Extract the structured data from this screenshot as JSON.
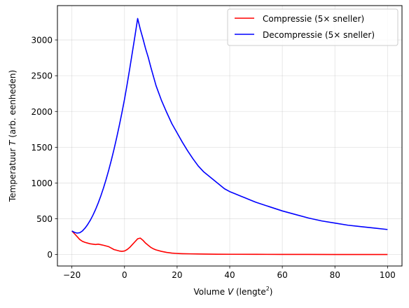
{
  "chart_data": {
    "type": "line",
    "xlabel_main": "Volume ",
    "xlabel_var": "V",
    "xlabel_unit": " (lengte",
    "xlabel_sup": "2",
    "xlabel_close": ")",
    "ylabel_main": "Temperatuur ",
    "ylabel_var": "T",
    "ylabel_unit": " (arb. eenheden)",
    "xlim": [
      -25.5,
      105.5
    ],
    "ylim": [
      -160,
      3480
    ],
    "xticks": [
      -20,
      0,
      20,
      40,
      60,
      80,
      100
    ],
    "xtick_labels": [
      "−20",
      "0",
      "20",
      "40",
      "60",
      "80",
      "100"
    ],
    "yticks": [
      0,
      500,
      1000,
      1500,
      2000,
      2500,
      3000
    ],
    "ytick_labels": [
      "0",
      "500",
      "1000",
      "1500",
      "2000",
      "2500",
      "3000"
    ],
    "grid": true,
    "legend_position": "top-right",
    "series": [
      {
        "name": "Compressie (5× sneller)",
        "color": "#ff0000",
        "x": [
          -20,
          -19,
          -18,
          -17,
          -16,
          -15,
          -14,
          -13,
          -12,
          -11,
          -10,
          -9,
          -8,
          -7,
          -6,
          -5,
          -4,
          -3,
          -2,
          -1,
          0,
          1,
          2,
          3,
          4,
          5,
          6,
          7,
          8,
          9,
          10,
          11,
          12,
          14,
          16,
          18,
          20,
          22,
          25,
          30,
          35,
          40,
          50,
          60,
          70,
          80,
          90,
          100
        ],
        "y": [
          330,
          290,
          250,
          210,
          185,
          170,
          160,
          150,
          145,
          140,
          145,
          138,
          130,
          120,
          110,
          90,
          70,
          60,
          50,
          45,
          50,
          70,
          100,
          140,
          180,
          220,
          230,
          200,
          160,
          130,
          100,
          80,
          65,
          45,
          30,
          20,
          15,
          12,
          10,
          7,
          5,
          4,
          3,
          2,
          2,
          1,
          1,
          1
        ]
      },
      {
        "name": "Decompressie (5× sneller)",
        "color": "#0000ff",
        "x": [
          -20,
          -19,
          -18,
          -17,
          -16,
          -15,
          -14,
          -13,
          -12,
          -11,
          -10,
          -9,
          -8,
          -7,
          -6,
          -5,
          -4,
          -3,
          -2,
          -1,
          0,
          1,
          2,
          3,
          4,
          5,
          6,
          7,
          8,
          9,
          10,
          11,
          12,
          13,
          14,
          16,
          18,
          20,
          22,
          24,
          26,
          28,
          30,
          32,
          34,
          36,
          38,
          40,
          42,
          44,
          46,
          48,
          50,
          55,
          60,
          65,
          70,
          75,
          80,
          85,
          90,
          95,
          100
        ],
        "y": [
          330,
          310,
          300,
          305,
          330,
          370,
          420,
          480,
          550,
          630,
          720,
          820,
          930,
          1050,
          1180,
          1320,
          1470,
          1630,
          1800,
          1980,
          2170,
          2380,
          2600,
          2830,
          3060,
          3300,
          3150,
          3020,
          2880,
          2760,
          2620,
          2490,
          2360,
          2260,
          2160,
          1990,
          1830,
          1700,
          1570,
          1450,
          1340,
          1240,
          1160,
          1100,
          1040,
          980,
          920,
          880,
          850,
          820,
          790,
          760,
          730,
          670,
          610,
          560,
          510,
          470,
          440,
          410,
          390,
          370,
          350
        ]
      }
    ]
  }
}
